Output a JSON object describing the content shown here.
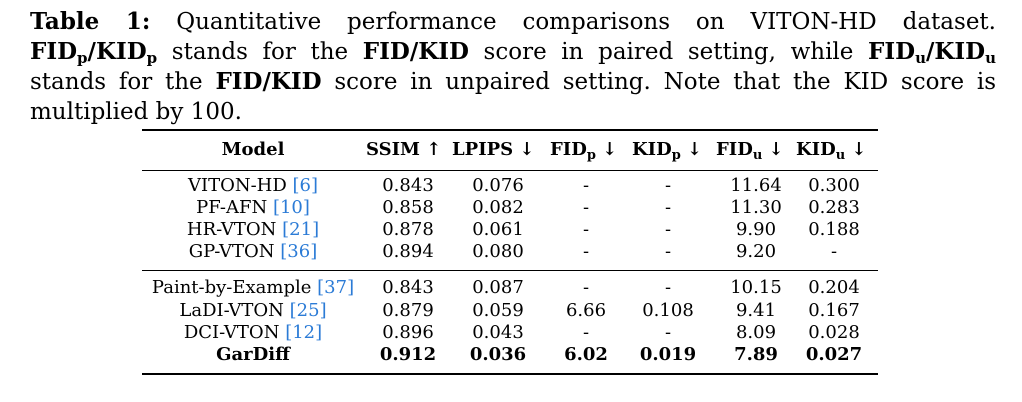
{
  "caption": {
    "label": "Table 1:",
    "text_1": " Quantitative performance comparisons on VITON-HD dataset. ",
    "fid_p_base": "FID",
    "fid_p_sub": "p",
    "slash": "/",
    "kid_p_base": "KID",
    "kid_p_sub": "p",
    "text_2": " stands for the ",
    "fid_kid": "FID/KID",
    "text_3": " score in paired setting, while ",
    "fid_u_base": "FID",
    "fid_u_sub": "u",
    "kid_u_base": "KID",
    "kid_u_sub": "u",
    "text_4": " stands for the ",
    "fid_kid_2": "FID/KID",
    "text_5": " score in unpaired setting. Note that the KID score is multiplied by 100."
  },
  "table": {
    "headers": {
      "model": "Model",
      "ssim": "SSIM ↑",
      "lpips": "LPIPS ↓",
      "fidp_base": "FID",
      "fidp_sub": "p",
      "fidp_arrow": " ↓",
      "kidp_base": "KID",
      "kidp_sub": "p",
      "kidp_arrow": " ↓",
      "fidu_base": "FID",
      "fidu_sub": "u",
      "fidu_arrow": " ↓",
      "kidu_base": "KID",
      "kidu_sub": "u",
      "kidu_arrow": " ↓"
    },
    "rows": [
      {
        "model": "VITON-HD",
        "ref": "[6]",
        "ssim": "0.843",
        "lpips": "0.076",
        "fidp": "-",
        "kidp": "-",
        "fidu": "11.64",
        "kidu": "0.300"
      },
      {
        "model": "PF-AFN",
        "ref": "[10]",
        "ssim": "0.858",
        "lpips": "0.082",
        "fidp": "-",
        "kidp": "-",
        "fidu": "11.30",
        "kidu": "0.283"
      },
      {
        "model": "HR-VTON",
        "ref": "[21]",
        "ssim": "0.878",
        "lpips": "0.061",
        "fidp": "-",
        "kidp": "-",
        "fidu": "9.90",
        "kidu": "0.188"
      },
      {
        "model": "GP-VTON",
        "ref": "[36]",
        "ssim": "0.894",
        "lpips": "0.080",
        "fidp": "-",
        "kidp": "-",
        "fidu": "9.20",
        "kidu": "-"
      },
      {
        "model": "Paint-by-Example",
        "ref": "[37]",
        "ssim": "0.843",
        "lpips": "0.087",
        "fidp": "-",
        "kidp": "-",
        "fidu": "10.15",
        "kidu": "0.204"
      },
      {
        "model": "LaDI-VTON",
        "ref": "[25]",
        "ssim": "0.879",
        "lpips": "0.059",
        "fidp": "6.66",
        "kidp": "0.108",
        "fidu": "9.41",
        "kidu": "0.167"
      },
      {
        "model": "DCI-VTON",
        "ref": "[12]",
        "ssim": "0.896",
        "lpips": "0.043",
        "fidp": "-",
        "kidp": "-",
        "fidu": "8.09",
        "kidu": "0.028"
      },
      {
        "model": "GarDiff",
        "ref": "",
        "ssim": "0.912",
        "lpips": "0.036",
        "fidp": "6.02",
        "kidp": "0.019",
        "fidu": "7.89",
        "kidu": "0.027"
      }
    ]
  }
}
